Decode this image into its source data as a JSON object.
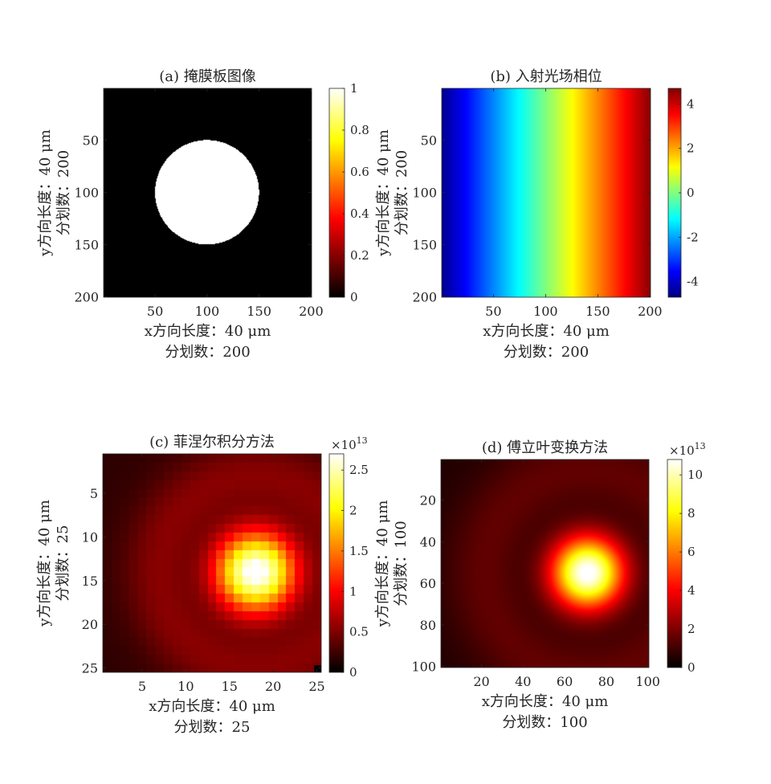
{
  "chart_data": [
    {
      "type": "heatmap",
      "title": "(a) 掩膜板图像",
      "xlabel": "x方向长度：40 μm",
      "xlabel2": "分划数：200",
      "ylabel": "y方向长度：40 μm",
      "ylabel2": "分划数：200",
      "xlim": [
        0.5,
        200.5
      ],
      "ylim": [
        0.5,
        200.5
      ],
      "xticks": [
        50,
        100,
        150,
        200
      ],
      "yticks": [
        50,
        100,
        150,
        200
      ],
      "colormap": "hot",
      "clim": [
        0,
        1
      ],
      "colorbar_ticks": [
        "0",
        "0.2",
        "0.4",
        "0.6",
        "0.8",
        "1"
      ],
      "colorbar_tick_values": [
        0,
        0.2,
        0.4,
        0.6,
        0.8,
        1
      ],
      "colorbar_exponent": "",
      "field": {
        "kind": "circle",
        "center": [
          100,
          100
        ],
        "radius": 50,
        "inside": 1,
        "outside": 0
      }
    },
    {
      "type": "heatmap",
      "title": "(b) 入射光场相位",
      "xlabel": "x方向长度：40 μm",
      "xlabel2": "分划数：200",
      "ylabel": "y方向长度：40 μm",
      "ylabel2": "分划数：200",
      "xlim": [
        0.5,
        200.5
      ],
      "ylim": [
        0.5,
        200.5
      ],
      "xticks": [
        50,
        100,
        150,
        200
      ],
      "yticks": [
        50,
        100,
        150,
        200
      ],
      "colormap": "jet",
      "clim": [
        -4.7,
        4.7
      ],
      "colorbar_ticks": [
        "-4",
        "-2",
        "0",
        "2",
        "4"
      ],
      "colorbar_tick_values": [
        -4,
        -2,
        0,
        2,
        4
      ],
      "colorbar_exponent": "",
      "field": {
        "kind": "gradient",
        "value_at_x0": -4.6,
        "value_at_x200": 4.6
      }
    },
    {
      "type": "heatmap",
      "title": "(c) 菲涅尔积分方法",
      "xlabel": "x方向长度：40 μm",
      "xlabel2": "分划数：25",
      "ylabel": "y方向长度：40 μm",
      "ylabel2": "分划数：25",
      "xlim": [
        0.5,
        25.5
      ],
      "ylim": [
        0.5,
        25.5
      ],
      "xticks": [
        5,
        10,
        15,
        20,
        25
      ],
      "yticks": [
        5,
        10,
        15,
        20,
        25
      ],
      "colormap": "hot",
      "clim": [
        0,
        2.7
      ],
      "colorbar_ticks": [
        "0",
        "0.5",
        "1",
        "1.5",
        "2",
        "2.5"
      ],
      "colorbar_tick_values": [
        0,
        0.5,
        1,
        1.5,
        2,
        2.5
      ],
      "colorbar_exponent": "13",
      "field": {
        "kind": "airy",
        "center": [
          18,
          14
        ],
        "peak": 2.65,
        "sigma": 3.4,
        "ring_radius": 10.5,
        "ring_width": 3.2,
        "ring_level": 0.42,
        "base": 0.18
      }
    },
    {
      "type": "heatmap",
      "title": "(d) 傅立叶变换方法",
      "xlabel": "x方向长度：40 μm",
      "xlabel2": "分划数：100",
      "ylabel": "y方向长度：40 μm",
      "ylabel2": "分划数：100",
      "xlim": [
        0.5,
        100.5
      ],
      "ylim": [
        0.5,
        100.5
      ],
      "xticks": [
        20,
        40,
        60,
        80,
        100
      ],
      "yticks": [
        20,
        40,
        60,
        80,
        100
      ],
      "colormap": "hot",
      "clim": [
        0,
        10.8
      ],
      "colorbar_ticks": [
        "0",
        "2",
        "4",
        "6",
        "8",
        "10"
      ],
      "colorbar_tick_values": [
        0,
        2,
        4,
        6,
        8,
        10
      ],
      "colorbar_exponent": "13",
      "field": {
        "kind": "airy",
        "center": [
          71,
          55
        ],
        "peak": 10.7,
        "sigma": 12.5,
        "ring_radius": 46,
        "ring_width": 15,
        "ring_level": 1.25,
        "base": 0.5
      }
    }
  ]
}
